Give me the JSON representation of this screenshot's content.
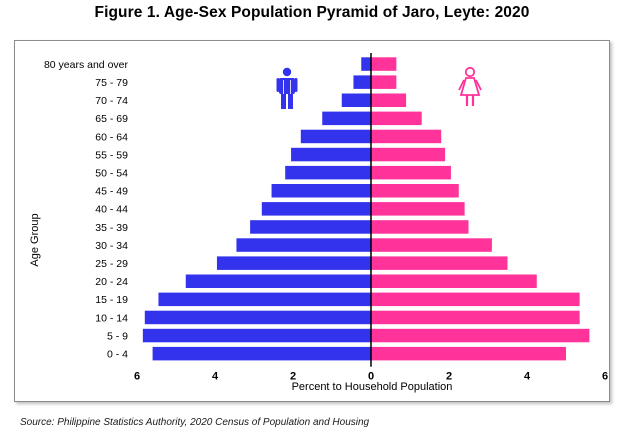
{
  "title": "Figure 1. Age-Sex Population Pyramid of Jaro, Leyte: 2020",
  "source": "Source: Philippine Statistics Authority, 2020 Census of Population and Housing",
  "icons": {
    "male": "male-person-icon",
    "female": "female-person-icon"
  },
  "colors": {
    "male": "#3333ee",
    "female": "#ff3399",
    "axis": "#000000"
  },
  "chart_data": {
    "type": "bar",
    "orientation": "horizontal-pyramid",
    "categories": [
      "80 years and over",
      "75 - 79",
      "70 - 74",
      "65 - 69",
      "60 - 64",
      "55 - 59",
      "50 - 54",
      "45 - 49",
      "40 - 44",
      "35 - 39",
      "30 - 34",
      "25 - 29",
      "20 - 24",
      "15 - 19",
      "10 - 14",
      "5 - 9",
      "0 - 4"
    ],
    "series": [
      {
        "values": [
          0.25,
          0.45,
          0.75,
          1.25,
          1.8,
          2.05,
          2.2,
          2.55,
          2.8,
          3.1,
          3.45,
          3.95,
          4.75,
          5.45,
          5.8,
          5.85,
          5.6
        ]
      },
      {
        "values": [
          0.65,
          0.65,
          0.9,
          1.3,
          1.8,
          1.9,
          2.05,
          2.25,
          2.4,
          2.5,
          3.1,
          3.5,
          4.25,
          5.35,
          5.35,
          5.6,
          5.0
        ]
      }
    ],
    "xlabel": "Percent to Household Population",
    "ylabel": "Age Group",
    "xlim": [
      -6,
      6
    ],
    "xticks": [
      -6,
      -4,
      -2,
      0,
      2,
      4,
      6
    ],
    "xtick_labels": [
      "6",
      "4",
      "2",
      "0",
      "2",
      "4",
      "6"
    ],
    "grid": false,
    "legend": "icons near top (male left, female right)"
  }
}
